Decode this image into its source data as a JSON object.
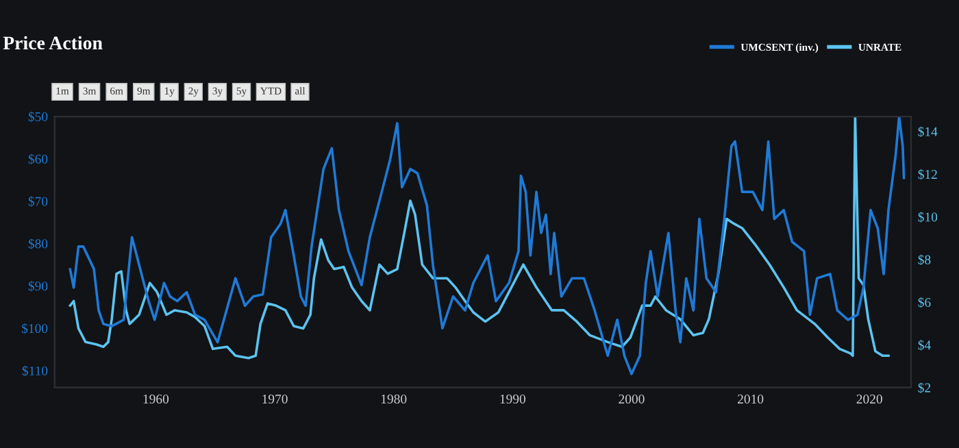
{
  "chart_data": {
    "type": "line",
    "title": "Price Action",
    "annotations": [
      "1m",
      "3m",
      "6m",
      "9m",
      "1y",
      "2y",
      "3y",
      "5y",
      "YTD",
      "all"
    ],
    "legend": "top right",
    "grid": false,
    "marker": "none",
    "line_style": "solid",
    "xlim": [
      1951.5,
      2023.5
    ],
    "xticks": [
      1960,
      1970,
      1980,
      1990,
      2000,
      2010,
      2020
    ],
    "ylim": [
      114,
      50
    ],
    "yticks": [
      {
        "value": 50,
        "label": "$50"
      },
      {
        "value": 60,
        "label": "$60"
      },
      {
        "value": 70,
        "label": "$70"
      },
      {
        "value": 80,
        "label": "$80"
      },
      {
        "value": 90,
        "label": "$90"
      },
      {
        "value": 100,
        "label": "$100"
      },
      {
        "value": 110,
        "label": "$110"
      }
    ],
    "y2lim": [
      2,
      14.7
    ],
    "y2ticks": [
      {
        "value": 2,
        "label": "$2"
      },
      {
        "value": 4,
        "label": "$4"
      },
      {
        "value": 6,
        "label": "$6"
      },
      {
        "value": 8,
        "label": "$8"
      },
      {
        "value": 10,
        "label": "$10"
      },
      {
        "value": 12,
        "label": "$12"
      },
      {
        "value": 14,
        "label": "$14"
      }
    ],
    "series": [
      {
        "name": "UMCSENT (inv.)",
        "color": "#1f7ad6",
        "x": [
          1952.8,
          1953.1,
          1953.5,
          1953.9,
          1954.8,
          1955.2,
          1955.6,
          1956.3,
          1957.3,
          1958.0,
          1958.8,
          1959.4,
          1959.9,
          1960.7,
          1961.2,
          1961.8,
          1962.6,
          1963.3,
          1964.1,
          1965.2,
          1966.7,
          1967.5,
          1968.2,
          1969.0,
          1969.7,
          1970.5,
          1970.9,
          1971.6,
          1972.2,
          1972.6,
          1973.1,
          1974.1,
          1974.8,
          1975.4,
          1976.2,
          1977.3,
          1978.0,
          1979.0,
          1979.7,
          1980.3,
          1980.7,
          1981.4,
          1982.0,
          1982.8,
          1983.3,
          1984.1,
          1985.0,
          1986.0,
          1986.7,
          1987.9,
          1988.6,
          1989.7,
          1990.5,
          1990.7,
          1991.1,
          1991.5,
          1992.0,
          1992.4,
          1992.8,
          1993.2,
          1993.5,
          1994.1,
          1995.0,
          1996.0,
          1996.9,
          1998.0,
          1998.8,
          1999.4,
          2000.0,
          2000.7,
          2001.2,
          2001.6,
          2002.2,
          2003.1,
          2003.7,
          2004.1,
          2004.6,
          2005.2,
          2005.7,
          2006.3,
          2007.1,
          2007.8,
          2008.4,
          2008.7,
          2009.3,
          2010.2,
          2011.0,
          2011.5,
          2012.0,
          2012.8,
          2013.5,
          2014.5,
          2015.0,
          2015.6,
          2016.7,
          2017.3,
          2018.2,
          2019.0,
          2019.5,
          2020.1,
          2020.7,
          2021.2,
          2021.6,
          2022.2,
          2022.5,
          2022.8,
          2022.9
        ],
        "values": [
          86.1,
          90.4,
          80.7,
          80.7,
          86,
          95.8,
          99,
          99.5,
          98,
          78.5,
          87.2,
          93.6,
          98,
          89.3,
          92.5,
          93.6,
          91.5,
          96.8,
          98,
          103.3,
          88.2,
          94.7,
          92.5,
          92,
          78.5,
          75.3,
          72.1,
          82.8,
          92.5,
          94.7,
          80.7,
          62.4,
          57.5,
          72.1,
          81.8,
          89.8,
          78.5,
          67.8,
          60.2,
          51.6,
          66.7,
          62.4,
          63.4,
          71,
          85,
          100,
          92.5,
          95.8,
          89.3,
          82.8,
          93.6,
          89.3,
          81.8,
          64,
          67.8,
          82.8,
          67.8,
          77.5,
          73.2,
          87.2,
          77.5,
          92.5,
          88.2,
          88.2,
          95.8,
          106.5,
          98,
          106.5,
          110.8,
          106.5,
          89.3,
          81.8,
          92.5,
          77.5,
          95.8,
          103.3,
          88.2,
          95.8,
          74.2,
          88.2,
          91.5,
          74.2,
          57,
          55.9,
          67.8,
          67.8,
          72.1,
          55.9,
          74.2,
          72.1,
          79.6,
          81.8,
          96.8,
          88.2,
          87.2,
          95.8,
          98,
          96.8,
          90.4,
          72.1,
          76.4,
          87.2,
          72.1,
          59.2,
          50,
          57,
          64.5
        ]
      },
      {
        "name": "UNRATE",
        "color": "#5cc3f0",
        "axis": "y2",
        "x": [
          1952.8,
          1953.1,
          1953.5,
          1954.1,
          1955.0,
          1955.6,
          1956.0,
          1956.3,
          1956.7,
          1957.1,
          1957.5,
          1957.8,
          1958.6,
          1959.5,
          1960.1,
          1960.9,
          1961.6,
          1962.6,
          1963.3,
          1964.1,
          1964.8,
          1966.0,
          1966.7,
          1967.8,
          1968.4,
          1968.8,
          1969.4,
          1970.1,
          1970.9,
          1971.6,
          1972.4,
          1973.0,
          1973.3,
          1973.9,
          1974.5,
          1975.0,
          1975.8,
          1976.5,
          1977.3,
          1978.0,
          1978.8,
          1979.5,
          1980.3,
          1980.9,
          1981.4,
          1981.8,
          1982.4,
          1983.3,
          1984.5,
          1985.2,
          1986.0,
          1986.7,
          1987.7,
          1988.8,
          1989.7,
          1990.9,
          1992.0,
          1993.3,
          1994.3,
          1995.4,
          1996.5,
          1998.0,
          1999.2,
          1999.9,
          2000.9,
          2001.6,
          2002.0,
          2002.9,
          2004.1,
          2005.2,
          2006.0,
          2006.5,
          2007.3,
          2008.0,
          2008.6,
          2009.3,
          2010.5,
          2011.6,
          2012.8,
          2013.9,
          2015.4,
          2016.5,
          2017.5,
          2018.4,
          2018.6,
          2018.8,
          2019.1,
          2019.5,
          2019.9,
          2020.5,
          2021.1,
          2021.6
        ],
        "values": [
          5.84,
          6.05,
          4.77,
          4.13,
          4.02,
          3.91,
          4.13,
          5.2,
          7.33,
          7.44,
          5.62,
          4.98,
          5.41,
          6.9,
          6.48,
          5.41,
          5.62,
          5.52,
          5.3,
          4.88,
          3.81,
          3.91,
          3.49,
          3.38,
          3.49,
          4.98,
          5.94,
          5.84,
          5.62,
          4.88,
          4.77,
          5.41,
          7.12,
          8.94,
          7.97,
          7.55,
          7.65,
          6.69,
          6.05,
          5.62,
          7.76,
          7.33,
          7.55,
          9.26,
          10.75,
          10.11,
          7.76,
          7.12,
          7.12,
          6.69,
          6.05,
          5.52,
          5.09,
          5.52,
          6.48,
          7.76,
          6.69,
          5.62,
          5.62,
          5.09,
          4.45,
          4.13,
          3.91,
          4.34,
          5.84,
          5.84,
          6.26,
          5.62,
          5.2,
          4.45,
          4.56,
          5.2,
          7.33,
          9.9,
          9.68,
          9.47,
          8.62,
          7.76,
          6.69,
          5.62,
          4.98,
          4.34,
          3.81,
          3.6,
          3.49,
          14.7,
          7.12,
          6.8,
          5.2,
          3.7,
          3.49,
          3.49
        ]
      }
    ]
  }
}
